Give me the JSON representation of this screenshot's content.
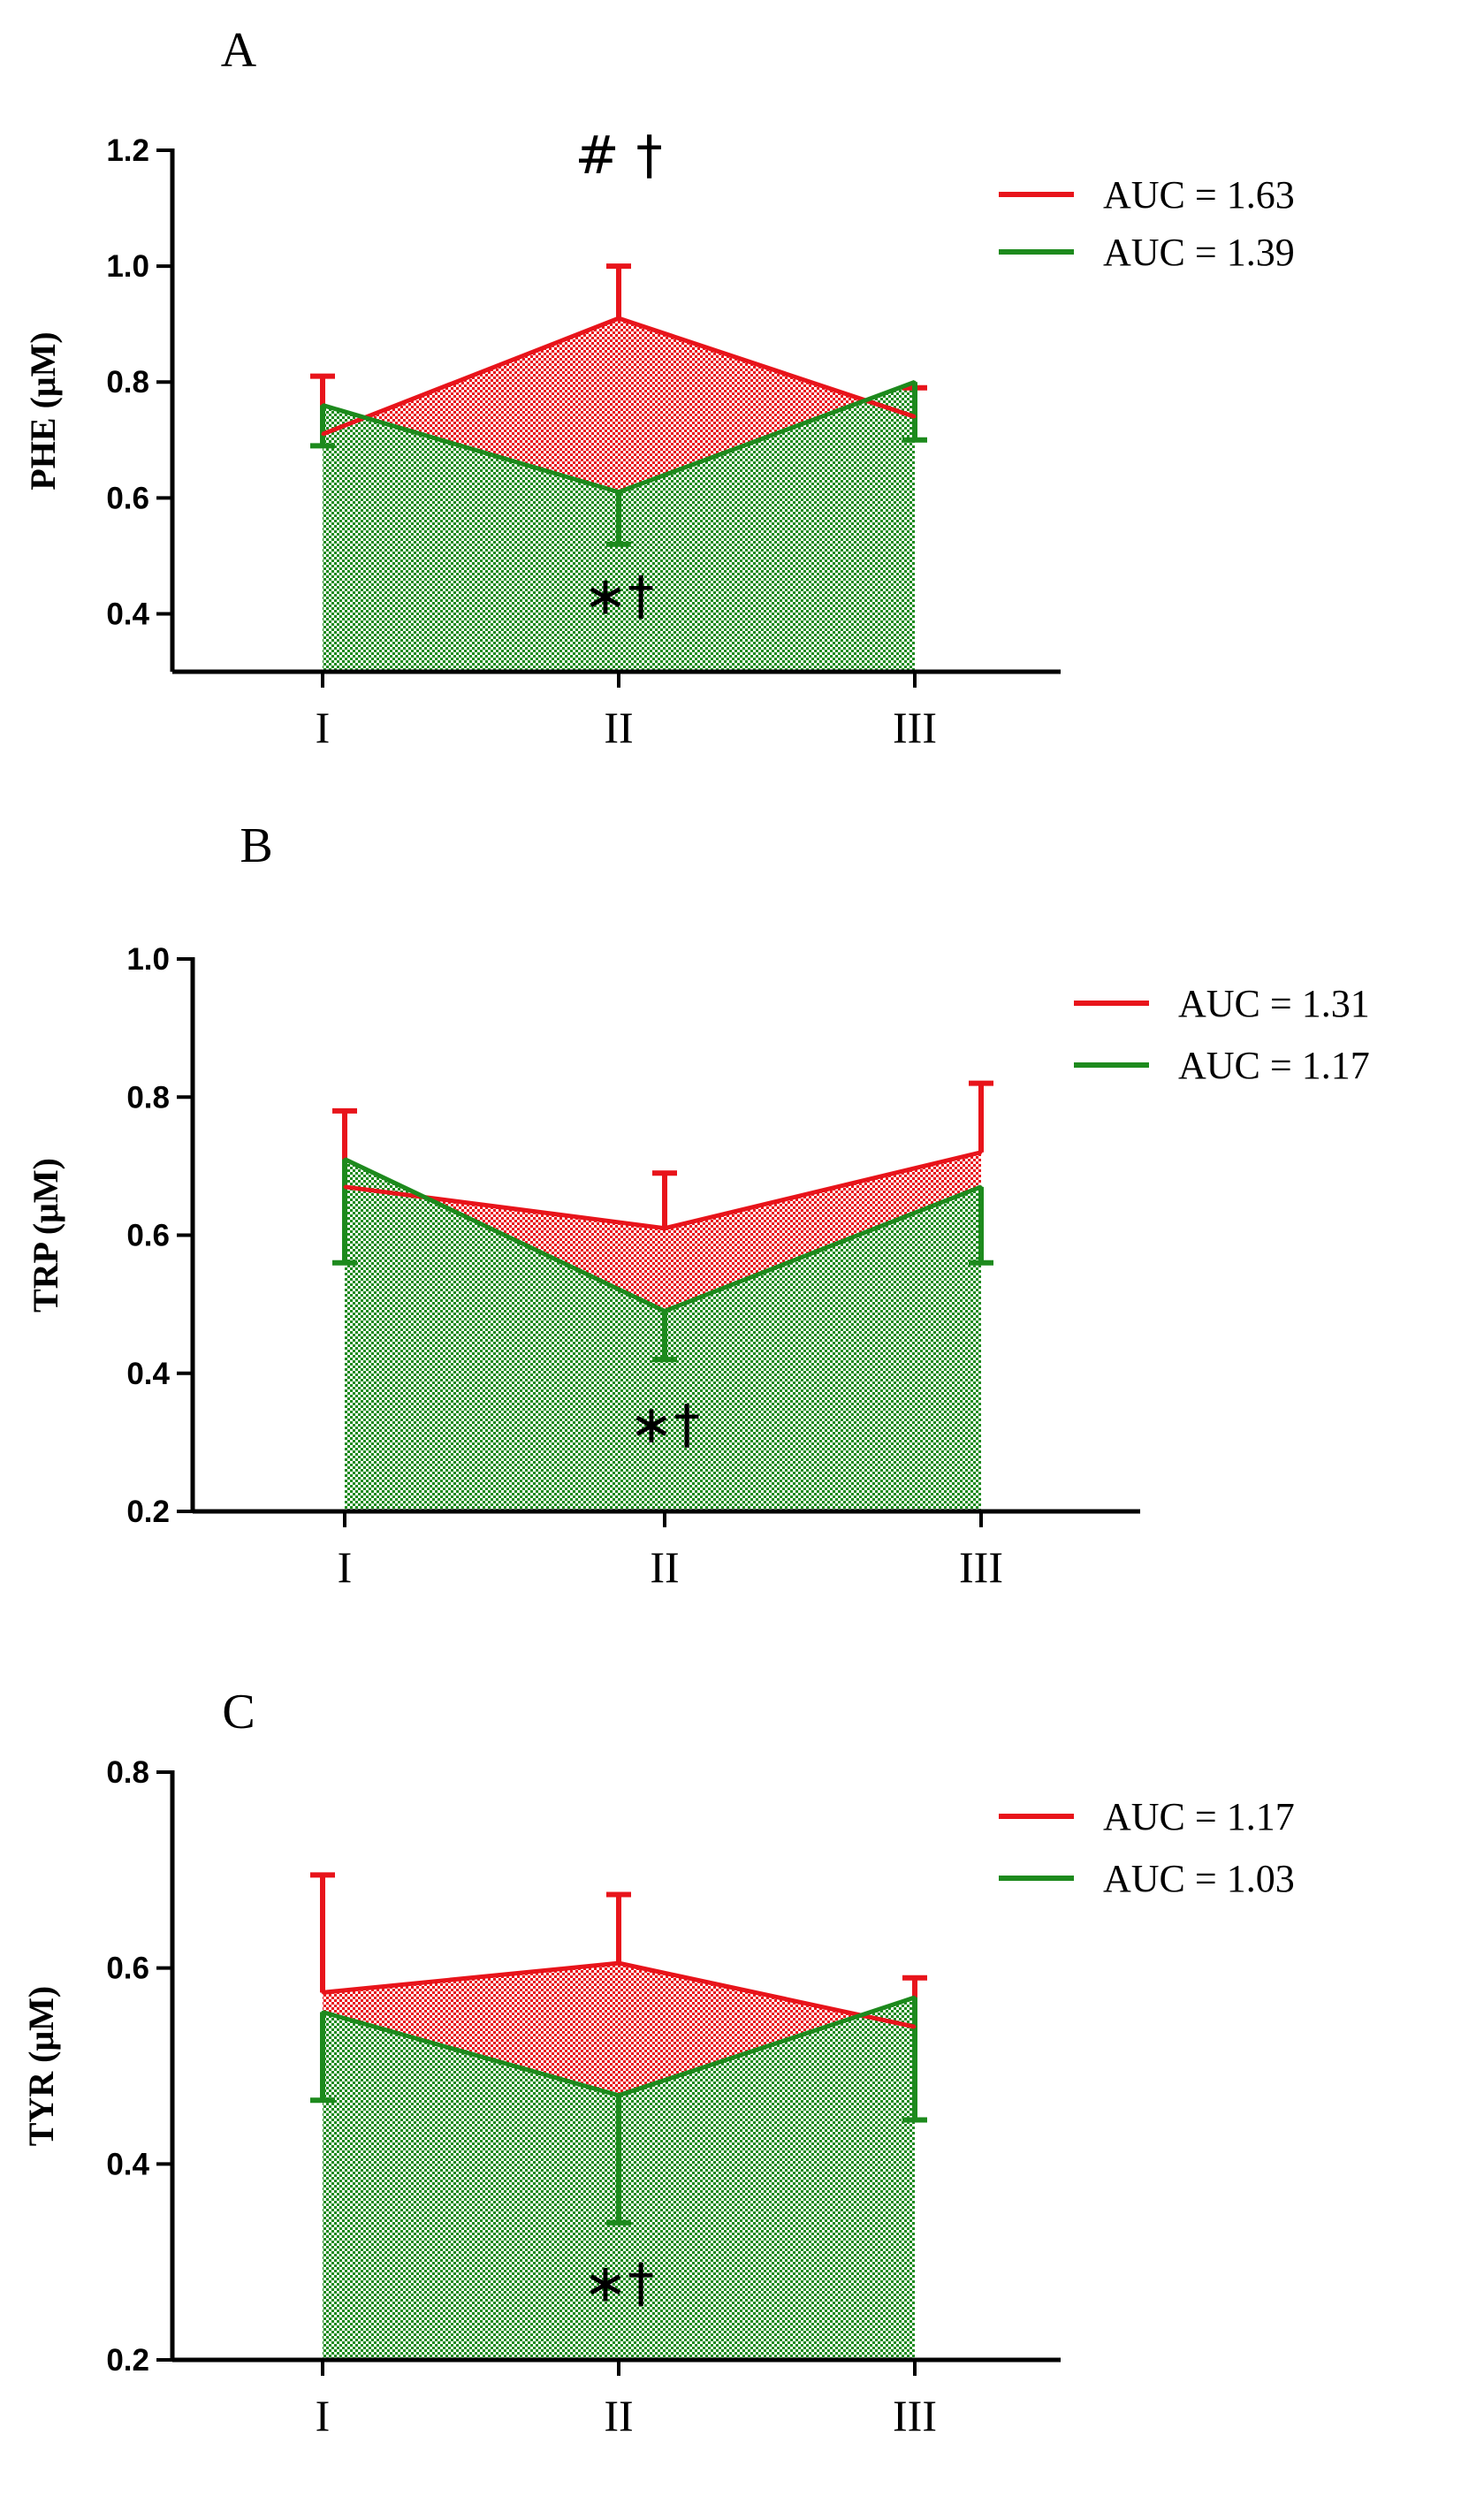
{
  "colors": {
    "red": "#e8141b",
    "green": "#1d8a1d",
    "red_fill": "#f07070",
    "green_fill": "#3d9a3d",
    "axis": "#000000"
  },
  "chart_data": [
    {
      "type": "area",
      "panel": "A",
      "ylabel": "PHE (μM)",
      "xlabel": "",
      "categories": [
        "I",
        "II",
        "III"
      ],
      "ylim": [
        0.3,
        1.2
      ],
      "yticks": [
        0.4,
        0.6,
        0.8,
        1.0,
        1.2
      ],
      "ytick_labels": [
        "0.4",
        "0.6",
        "0.8",
        "1.0",
        "1.2"
      ],
      "series": [
        {
          "name": "red",
          "legend": "AUC = 1.63",
          "values": [
            0.71,
            0.91,
            0.74
          ],
          "errors": [
            0.1,
            0.09,
            0.05
          ],
          "error_dir": "up"
        },
        {
          "name": "green",
          "legend": "AUC = 1.39",
          "values": [
            0.76,
            0.61,
            0.8
          ],
          "errors": [
            0.07,
            0.09,
            0.1
          ],
          "error_dir": "down"
        }
      ],
      "annotations": [
        {
          "text": "# †",
          "category": "II",
          "value": 1.16
        },
        {
          "text": "∗†",
          "category": "II",
          "value": 0.4
        }
      ],
      "legend_position": "top-right"
    },
    {
      "type": "area",
      "panel": "B",
      "ylabel": "TRP (μM)",
      "xlabel": "",
      "categories": [
        "I",
        "II",
        "III"
      ],
      "ylim": [
        0.2,
        1.0
      ],
      "yticks": [
        0.2,
        0.4,
        0.6,
        0.8,
        1.0
      ],
      "ytick_labels": [
        "0.2",
        "0.4",
        "0.6",
        "0.8",
        "1.0"
      ],
      "series": [
        {
          "name": "red",
          "legend": "AUC = 1.31",
          "values": [
            0.67,
            0.61,
            0.72
          ],
          "errors": [
            0.11,
            0.08,
            0.1
          ],
          "error_dir": "up"
        },
        {
          "name": "green",
          "legend": "AUC = 1.17",
          "values": [
            0.71,
            0.49,
            0.67
          ],
          "errors": [
            0.15,
            0.07,
            0.11
          ],
          "error_dir": "down"
        }
      ],
      "annotations": [
        {
          "text": "∗†",
          "category": "II",
          "value": 0.3
        }
      ],
      "legend_position": "top-right"
    },
    {
      "type": "area",
      "panel": "C",
      "ylabel": "TYR (μM)",
      "xlabel": "",
      "categories": [
        "I",
        "II",
        "III"
      ],
      "ylim": [
        0.2,
        0.8
      ],
      "yticks": [
        0.2,
        0.4,
        0.6,
        0.8
      ],
      "ytick_labels": [
        "0.2",
        "0.4",
        "0.6",
        "0.8"
      ],
      "series": [
        {
          "name": "red",
          "legend": "AUC = 1.17",
          "values": [
            0.575,
            0.605,
            0.54
          ],
          "errors": [
            0.12,
            0.07,
            0.05
          ],
          "error_dir": "up"
        },
        {
          "name": "green",
          "legend": "AUC = 1.03",
          "values": [
            0.555,
            0.47,
            0.57
          ],
          "errors": [
            0.09,
            0.13,
            0.125
          ],
          "error_dir": "down"
        }
      ],
      "annotations": [
        {
          "text": "∗†",
          "category": "II",
          "value": 0.26
        }
      ],
      "legend_position": "top-right"
    }
  ]
}
